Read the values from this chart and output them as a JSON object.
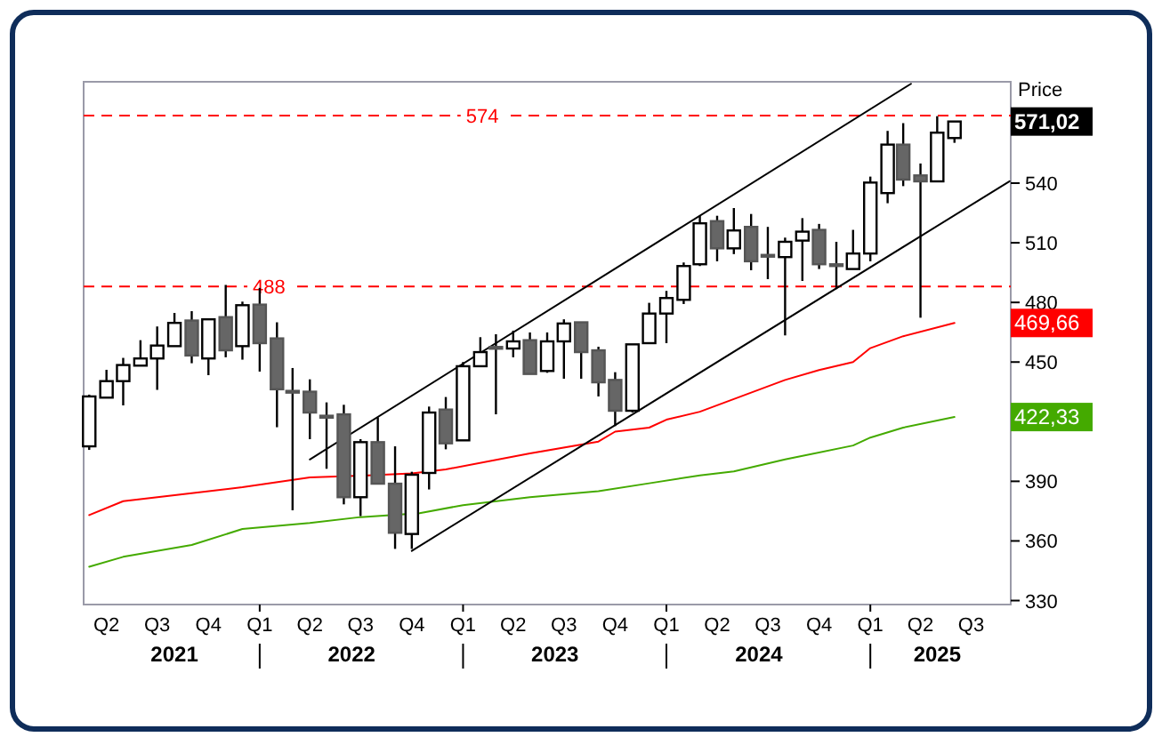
{
  "chart_data": {
    "type": "candlestick",
    "ylabel": "Price",
    "x": [
      "2021-03",
      "2021-04",
      "2021-05",
      "2021-06",
      "2021-07",
      "2021-08",
      "2021-09",
      "2021-10",
      "2021-11",
      "2021-12",
      "2022-01",
      "2022-02",
      "2022-03",
      "2022-04",
      "2022-05",
      "2022-06",
      "2022-07",
      "2022-08",
      "2022-09",
      "2022-10",
      "2022-11",
      "2022-12",
      "2023-01",
      "2023-02",
      "2023-03",
      "2023-04",
      "2023-05",
      "2023-06",
      "2023-07",
      "2023-08",
      "2023-09",
      "2023-10",
      "2023-11",
      "2023-12",
      "2024-01",
      "2024-02",
      "2024-03",
      "2024-04",
      "2024-05",
      "2024-06",
      "2024-07",
      "2024-08",
      "2024-09",
      "2024-10",
      "2024-11",
      "2024-12",
      "2025-01",
      "2025-02",
      "2025-03",
      "2025-04",
      "2025-05",
      "2025-06"
    ],
    "ohlc": [
      [
        407.6,
        433.6,
        405.8,
        432.7
      ],
      [
        432.1,
        446.1,
        432,
        440.4
      ],
      [
        440.4,
        452.1,
        428.2,
        448.5
      ],
      [
        448.2,
        461,
        448.2,
        451.8
      ],
      [
        451.8,
        467.9,
        436,
        458.3
      ],
      [
        458,
        474.7,
        458,
        469.7
      ],
      [
        470.9,
        475.6,
        449.4,
        453.3
      ],
      [
        451.8,
        471.5,
        443.4,
        471.5
      ],
      [
        472.6,
        488.8,
        452.4,
        455.9
      ],
      [
        458,
        480.4,
        451.2,
        478.6
      ],
      [
        478.9,
        487.3,
        445.2,
        459.5
      ],
      [
        461.9,
        470,
        417.2,
        436.3
      ],
      [
        435.5,
        447,
        375.4,
        435
      ],
      [
        435.1,
        441.3,
        411.2,
        424.6
      ],
      [
        423,
        429.7,
        396.3,
        422
      ],
      [
        423.7,
        428.5,
        378.4,
        382
      ],
      [
        382,
        411.2,
        372.5,
        409.7
      ],
      [
        409.7,
        422.2,
        388.8,
        388.8
      ],
      [
        388.8,
        407.6,
        356,
        364.1
      ],
      [
        363.5,
        394.8,
        356,
        393.3
      ],
      [
        394.2,
        427.6,
        385.9,
        424.6
      ],
      [
        426.1,
        432.4,
        406.1,
        409.1
      ],
      [
        410.6,
        450,
        410.6,
        447.9
      ],
      [
        447.9,
        462.5,
        447.9,
        455
      ],
      [
        457.6,
        464,
        423.7,
        457.2
      ],
      [
        456.8,
        465.8,
        452.4,
        460.4
      ],
      [
        461,
        464.9,
        444,
        444
      ],
      [
        445.5,
        464.9,
        444.6,
        460.4
      ],
      [
        460.4,
        471.5,
        441.6,
        469.4
      ],
      [
        470,
        470,
        441.6,
        455
      ],
      [
        455.9,
        457.7,
        432.7,
        439.8
      ],
      [
        441,
        444.9,
        417.8,
        425.5
      ],
      [
        425.5,
        458.9,
        424.6,
        458.9
      ],
      [
        459.5,
        479.8,
        459.5,
        474.4
      ],
      [
        474.4,
        485.8,
        459.5,
        482.2
      ],
      [
        481.3,
        500.1,
        479.2,
        498.3
      ],
      [
        499.2,
        523.6,
        498.3,
        519.8
      ],
      [
        520.9,
        523.6,
        500.7,
        507.2
      ],
      [
        507.2,
        527.5,
        504.3,
        516.2
      ],
      [
        518,
        524.5,
        496.2,
        500.7
      ],
      [
        503.9,
        518,
        491.7,
        503.5
      ],
      [
        502.8,
        512.6,
        463.4,
        510.5
      ],
      [
        511.1,
        522.4,
        490.8,
        515.6
      ],
      [
        516.5,
        519.5,
        496.8,
        499.2
      ],
      [
        499.2,
        510.5,
        486.7,
        498.7
      ],
      [
        496.8,
        516.5,
        496.8,
        504.6
      ],
      [
        504.6,
        543.3,
        500.7,
        540.3
      ],
      [
        535,
        566.3,
        529.9,
        559.4
      ],
      [
        559.4,
        570.2,
        538.5,
        541.8
      ],
      [
        543.9,
        549.9,
        472.3,
        540.9
      ],
      [
        540.9,
        573.7,
        540.9,
        565.4
      ],
      [
        562.7,
        571.02,
        560.3,
        571.02
      ]
    ],
    "series": [
      {
        "type": "line",
        "color": "#ff0000",
        "x": [
          "2021-03",
          "2021-05",
          "2021-09",
          "2021-12",
          "2022-04",
          "2022-07-15",
          "2022-10",
          "2022-12",
          "2023-05",
          "2023-09",
          "2023-10",
          "2023-12",
          "2024-01",
          "2024-03",
          "2024-08",
          "2024-10",
          "2024-12",
          "2025-01",
          "2025-03",
          "2025-06"
        ],
        "values": [
          373,
          380,
          384,
          387,
          392,
          393,
          394,
          396,
          404,
          410,
          415,
          417,
          421,
          425,
          441,
          446,
          450,
          457,
          463,
          469.66
        ]
      },
      {
        "type": "line",
        "color": "#44aa00",
        "x": [
          "2021-03",
          "2021-05",
          "2021-09",
          "2021-12",
          "2022-04",
          "2022-07",
          "2022-10-15",
          "2023-01",
          "2023-05",
          "2023-09",
          "2023-12",
          "2024-03",
          "2024-05",
          "2024-08",
          "2024-12",
          "2025-01",
          "2025-03",
          "2025-06"
        ],
        "values": [
          347,
          352,
          358,
          366,
          369,
          372,
          374,
          378,
          382,
          385,
          389,
          393,
          395,
          401,
          408,
          412,
          417,
          422.33
        ]
      },
      {
        "type": "line",
        "color": "#000000",
        "x": [
          "2022-04-01",
          "2025-03-15"
        ],
        "values": [
          401,
          590
        ]
      },
      {
        "type": "line",
        "color": "#000000",
        "x": [
          "2022-10-01",
          "2025-09-08"
        ],
        "values": [
          355,
          541
        ]
      }
    ],
    "ref_lines": [
      {
        "axis": "y",
        "value": 574,
        "label": "574",
        "color": "#ff0000",
        "line_style": "dashed"
      },
      {
        "axis": "y",
        "value": 488,
        "label": "488",
        "color": "#ff0000",
        "line_style": "dashed"
      }
    ],
    "annotations": [
      {
        "text": "571,02",
        "x": "2025-06",
        "y": 571.02
      },
      {
        "text": "469,66",
        "x": "2025-06",
        "y": 469.66
      },
      {
        "text": "422,33",
        "x": "2025-06",
        "y": 422.33
      }
    ],
    "xlim": [
      "2021-02-19",
      "2025-09-10"
    ],
    "ylim": [
      328,
      591
    ],
    "xticks": [
      {
        "value": "2021-04",
        "label": "Q2"
      },
      {
        "value": "2021-07",
        "label": "Q3"
      },
      {
        "value": "2021-10",
        "label": "Q4"
      },
      {
        "value": "2022-01",
        "label": "Q1"
      },
      {
        "value": "2022-04",
        "label": "Q2"
      },
      {
        "value": "2022-07",
        "label": "Q3"
      },
      {
        "value": "2022-10",
        "label": "Q4"
      },
      {
        "value": "2023-01",
        "label": "Q1"
      },
      {
        "value": "2023-04",
        "label": "Q2"
      },
      {
        "value": "2023-07",
        "label": "Q3"
      },
      {
        "value": "2023-10",
        "label": "Q4"
      },
      {
        "value": "2024-01",
        "label": "Q1"
      },
      {
        "value": "2024-04",
        "label": "Q2"
      },
      {
        "value": "2024-07",
        "label": "Q3"
      },
      {
        "value": "2024-10",
        "label": "Q4"
      },
      {
        "value": "2025-01",
        "label": "Q1"
      },
      {
        "value": "2025-04",
        "label": "Q2"
      },
      {
        "value": "2025-07",
        "label": "Q3"
      }
    ],
    "x2lim": [
      "2021-02-19",
      "2025-09-10"
    ],
    "x2ticks": [
      {
        "value": "2021-08-01",
        "label": "2021"
      },
      {
        "value": "2022-01",
        "label": null
      },
      {
        "value": "2022-06-15",
        "label": "2022"
      },
      {
        "value": "2023-01",
        "label": null
      },
      {
        "value": "2023-06-15",
        "label": "2023"
      },
      {
        "value": "2024-01",
        "label": null
      },
      {
        "value": "2024-06-15",
        "label": "2024"
      },
      {
        "value": "2025-01",
        "label": null
      },
      {
        "value": "2025-05-01",
        "label": "2025"
      }
    ],
    "yticks": [
      330,
      360,
      390,
      450,
      480,
      510,
      540
    ]
  }
}
